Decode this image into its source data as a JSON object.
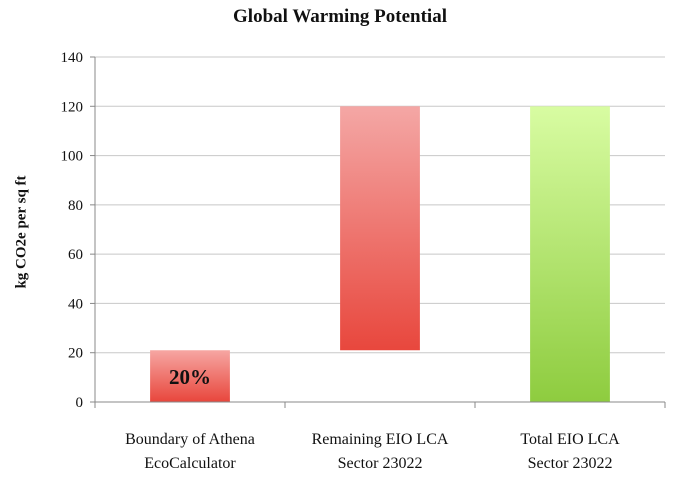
{
  "chart_data": {
    "type": "bar",
    "title": "Global Warming Potential",
    "xlabel": "",
    "ylabel": "kg CO2e per sq ft",
    "ylim": [
      0,
      140
    ],
    "yticks": [
      0,
      20,
      40,
      60,
      80,
      100,
      120,
      140
    ],
    "grid": true,
    "categories": [
      [
        "Boundary of  Athena",
        "EcoCalculator"
      ],
      [
        "Remaining EIO LCA",
        "Sector 23022"
      ],
      [
        "Total EIO LCA",
        "Sector 23022"
      ]
    ],
    "bars": [
      {
        "base": 0,
        "value": 21,
        "color_top": "#f6a6a2",
        "color_bottom": "#e8463c",
        "label": "20%"
      },
      {
        "base": 21,
        "value": 120,
        "color_top": "#f4a7a5",
        "color_bottom": "#e8473d",
        "label": ""
      },
      {
        "base": 0,
        "value": 120,
        "color_top": "#d8fca2",
        "color_bottom": "#8ecc3f",
        "label": ""
      }
    ]
  }
}
